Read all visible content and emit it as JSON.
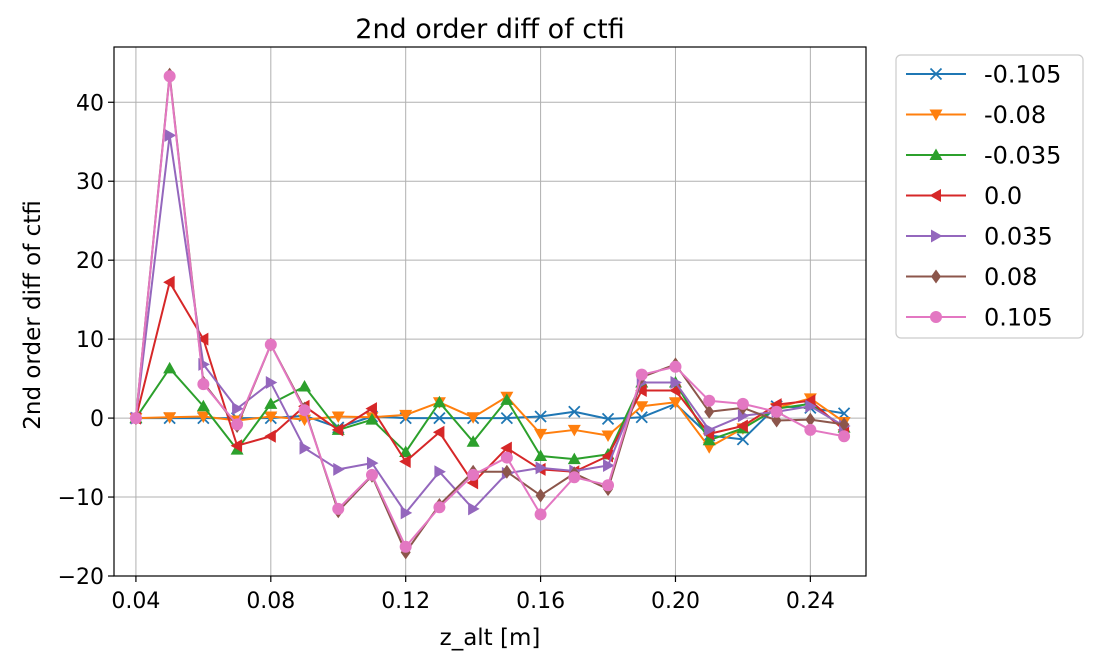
{
  "chart_data": {
    "type": "line",
    "title": "2nd order diff of ctfi",
    "xlabel": "z_alt [m]",
    "ylabel": "2nd order diff of ctfi",
    "xlim": [
      0.0335,
      0.2565
    ],
    "ylim": [
      -20,
      47
    ],
    "xticks": [
      0.04,
      0.08,
      0.12,
      0.16,
      0.2,
      0.24
    ],
    "xtick_labels": [
      "0.04",
      "0.08",
      "0.12",
      "0.16",
      "0.20",
      "0.24"
    ],
    "yticks": [
      -20,
      -10,
      0,
      10,
      20,
      30,
      40
    ],
    "ytick_labels": [
      "−20",
      "−10",
      "0",
      "10",
      "20",
      "30",
      "40"
    ],
    "grid": true,
    "legend_position": "outside-right",
    "x": [
      0.04,
      0.05,
      0.06,
      0.07,
      0.08,
      0.09,
      0.1,
      0.11,
      0.12,
      0.13,
      0.14,
      0.15,
      0.16,
      0.17,
      0.18,
      0.19,
      0.2,
      0.21,
      0.22,
      0.23,
      0.24,
      0.25
    ],
    "series": [
      {
        "name": "-0.105",
        "color": "#1f77b4",
        "marker": "x",
        "values": [
          0,
          0,
          0,
          0,
          0,
          0.3,
          -1.2,
          0.2,
          0,
          0,
          0,
          0,
          0.2,
          0.8,
          -0.1,
          0.1,
          1.8,
          -2.2,
          -2.7,
          1.5,
          1.3,
          0.6
        ]
      },
      {
        "name": "-0.08",
        "color": "#ff7f0e",
        "marker": "triangle-down",
        "values": [
          0,
          0.1,
          0.2,
          -0.3,
          0.2,
          -0.2,
          0.2,
          0.1,
          0.4,
          2.0,
          0.1,
          2.7,
          -2.0,
          -1.5,
          -2.2,
          1.5,
          2.0,
          -3.7,
          -1.3,
          1.3,
          2.5,
          -0.5
        ]
      },
      {
        "name": "-0.035",
        "color": "#2ca02c",
        "marker": "triangle-up",
        "values": [
          0,
          6.3,
          1.5,
          -4.0,
          1.8,
          4.0,
          -1.5,
          -0.2,
          -4.3,
          2.0,
          -3.0,
          2.3,
          -4.8,
          -5.2,
          -4.6,
          4.5,
          4.5,
          -2.8,
          -1.3,
          1.2,
          1.8,
          -1.2
        ]
      },
      {
        "name": "0.0",
        "color": "#d62728",
        "marker": "triangle-left",
        "values": [
          0,
          17.2,
          10.0,
          -3.5,
          -2.3,
          1.5,
          -1.5,
          1.2,
          -5.5,
          -1.8,
          -8.2,
          -3.8,
          -6.5,
          -6.8,
          -4.8,
          3.5,
          3.5,
          -2.0,
          -1.0,
          1.7,
          2.2,
          -1.5
        ]
      },
      {
        "name": "0.035",
        "color": "#9467bd",
        "marker": "triangle-right",
        "values": [
          0,
          35.8,
          6.8,
          1.2,
          4.5,
          -3.8,
          -6.5,
          -5.7,
          -12.0,
          -6.8,
          -11.5,
          -7.0,
          -6.3,
          -6.7,
          -6.0,
          4.5,
          4.5,
          -1.5,
          0.3,
          0.8,
          1.5,
          -1.0
        ]
      },
      {
        "name": "0.08",
        "color": "#8c564b",
        "marker": "diamond",
        "values": [
          0,
          43.5,
          4.5,
          -1.0,
          9.3,
          1.2,
          -11.8,
          -7.3,
          -17.0,
          -11.0,
          -6.8,
          -6.8,
          -9.8,
          -7.0,
          -9.0,
          5.2,
          6.8,
          0.8,
          1.3,
          -0.3,
          -0.2,
          -0.8
        ]
      },
      {
        "name": "0.105",
        "color": "#e377c2",
        "marker": "circle",
        "values": [
          0,
          43.3,
          4.3,
          -0.8,
          9.3,
          1.0,
          -11.5,
          -7.2,
          -16.3,
          -11.3,
          -7.2,
          -5.0,
          -12.2,
          -7.5,
          -8.5,
          5.5,
          6.5,
          2.2,
          1.8,
          0.8,
          -1.5,
          -2.3
        ]
      }
    ]
  }
}
